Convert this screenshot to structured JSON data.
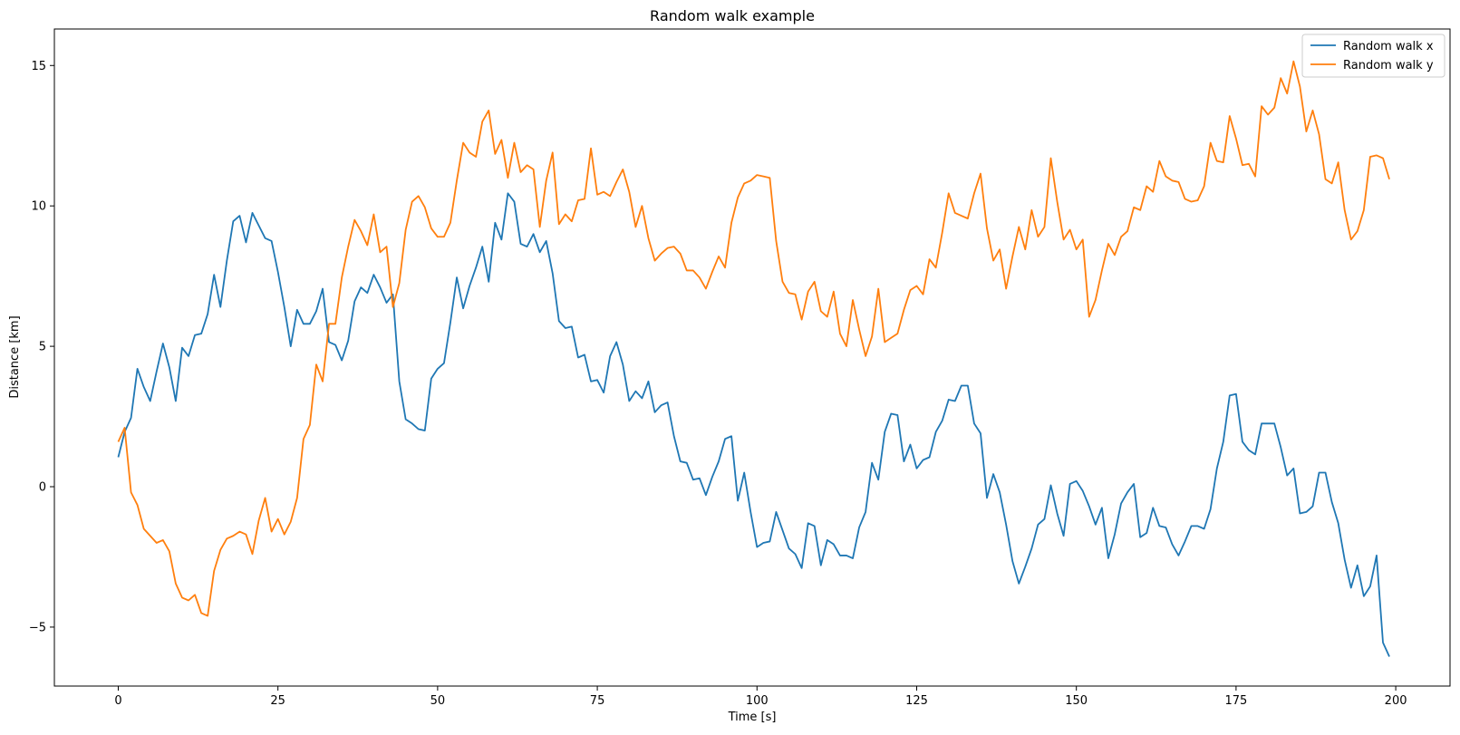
{
  "chart_data": {
    "type": "line",
    "title": "Random walk example",
    "xlabel": "Time [s]",
    "ylabel": "Distance [km]",
    "xlim": [
      -10,
      208.5
    ],
    "ylim": [
      -7.1,
      16.3
    ],
    "xticks": [
      0,
      25,
      50,
      75,
      100,
      125,
      150,
      175,
      200
    ],
    "xtick_labels": [
      "0",
      "25",
      "50",
      "75",
      "100",
      "125",
      "150",
      "175",
      "200"
    ],
    "yticks": [
      -5,
      0,
      5,
      10,
      15
    ],
    "ytick_labels": [
      "−5",
      "0",
      "5",
      "10",
      "15"
    ],
    "grid": false,
    "legend_position": "top-right",
    "x": [
      0,
      1,
      2,
      3,
      4,
      5,
      6,
      7,
      8,
      9,
      10,
      11,
      12,
      13,
      14,
      15,
      16,
      17,
      18,
      19,
      20,
      21,
      22,
      23,
      24,
      25,
      26,
      27,
      28,
      29,
      30,
      31,
      32,
      33,
      34,
      35,
      36,
      37,
      38,
      39,
      40,
      41,
      42,
      43,
      44,
      45,
      46,
      47,
      48,
      49,
      50,
      51,
      52,
      53,
      54,
      55,
      56,
      57,
      58,
      59,
      60,
      61,
      62,
      63,
      64,
      65,
      66,
      67,
      68,
      69,
      70,
      71,
      72,
      73,
      74,
      75,
      76,
      77,
      78,
      79,
      80,
      81,
      82,
      83,
      84,
      85,
      86,
      87,
      88,
      89,
      90,
      91,
      92,
      93,
      94,
      95,
      96,
      97,
      98,
      99,
      100,
      101,
      102,
      103,
      104,
      105,
      106,
      107,
      108,
      109,
      110,
      111,
      112,
      113,
      114,
      115,
      116,
      117,
      118,
      119,
      120,
      121,
      122,
      123,
      124,
      125,
      126,
      127,
      128,
      129,
      130,
      131,
      132,
      133,
      134,
      135,
      136,
      137,
      138,
      139,
      140,
      141,
      142,
      143,
      144,
      145,
      146,
      147,
      148,
      149,
      150,
      151,
      152,
      153,
      154,
      155,
      156,
      157,
      158,
      159,
      160,
      161,
      162,
      163,
      164,
      165,
      166,
      167,
      168,
      169,
      170,
      171,
      172,
      173,
      174,
      175,
      176,
      177,
      178,
      179,
      180,
      181,
      182,
      183,
      184,
      185,
      186,
      187,
      188,
      189,
      190,
      191,
      192,
      193,
      194,
      195,
      196,
      197,
      198,
      199
    ],
    "series": [
      {
        "name": "Random walk x",
        "color": "#1f77b4",
        "values": [
          1.05,
          1.95,
          2.45,
          4.2,
          3.55,
          3.05,
          4.1,
          5.1,
          4.25,
          3.05,
          4.95,
          4.65,
          5.4,
          5.45,
          6.15,
          7.55,
          6.4,
          8.05,
          9.45,
          9.65,
          8.7,
          9.75,
          9.3,
          8.85,
          8.75,
          7.65,
          6.4,
          5.0,
          6.3,
          5.8,
          5.8,
          6.25,
          7.05,
          5.15,
          5.05,
          4.5,
          5.2,
          6.6,
          7.1,
          6.9,
          7.55,
          7.1,
          6.55,
          6.85,
          3.75,
          2.4,
          2.25,
          2.05,
          2.0,
          3.85,
          4.2,
          4.4,
          5.85,
          7.45,
          6.35,
          7.15,
          7.8,
          8.55,
          7.3,
          9.4,
          8.8,
          10.45,
          10.15,
          8.65,
          8.55,
          9.0,
          8.35,
          8.75,
          7.6,
          5.9,
          5.65,
          5.7,
          4.6,
          4.7,
          3.75,
          3.8,
          3.35,
          4.65,
          5.15,
          4.35,
          3.05,
          3.4,
          3.15,
          3.75,
          2.65,
          2.9,
          3.0,
          1.8,
          0.9,
          0.85,
          0.25,
          0.3,
          -0.3,
          0.35,
          0.9,
          1.7,
          1.8,
          -0.5,
          0.5,
          -0.9,
          -2.15,
          -2.0,
          -1.95,
          -0.9,
          -1.55,
          -2.2,
          -2.4,
          -2.9,
          -1.3,
          -1.4,
          -2.8,
          -1.9,
          -2.05,
          -2.45,
          -2.45,
          -2.55,
          -1.45,
          -0.9,
          0.85,
          0.25,
          1.95,
          2.6,
          2.55,
          0.9,
          1.5,
          0.65,
          0.95,
          1.05,
          1.95,
          2.35,
          3.1,
          3.05,
          3.6,
          3.6,
          2.25,
          1.9,
          -0.4,
          0.45,
          -0.2,
          -1.35,
          -2.65,
          -3.45,
          -2.85,
          -2.2,
          -1.35,
          -1.15,
          0.05,
          -0.95,
          -1.75,
          0.1,
          0.2,
          -0.15,
          -0.7,
          -1.35,
          -0.75,
          -2.55,
          -1.7,
          -0.6,
          -0.2,
          0.1,
          -1.8,
          -1.65,
          -0.75,
          -1.4,
          -1.45,
          -2.05,
          -2.45,
          -1.95,
          -1.4,
          -1.4,
          -1.5,
          -0.8,
          0.65,
          1.6,
          3.25,
          3.3,
          1.6,
          1.3,
          1.15,
          2.25,
          2.25,
          2.25,
          1.4,
          0.4,
          0.65,
          -0.95,
          -0.9,
          -0.7,
          0.5,
          0.5,
          -0.55,
          -1.3,
          -2.6,
          -3.6,
          -2.8,
          -3.9,
          -3.55,
          -2.45,
          -5.55,
          -6.05
        ]
      },
      {
        "name": "Random walk y",
        "color": "#ff7f0e",
        "values": [
          1.6,
          2.1,
          -0.2,
          -0.65,
          -1.5,
          -1.75,
          -2.0,
          -1.9,
          -2.3,
          -3.45,
          -3.95,
          -4.05,
          -3.85,
          -4.5,
          -4.6,
          -3.0,
          -2.25,
          -1.85,
          -1.75,
          -1.6,
          -1.7,
          -2.4,
          -1.2,
          -0.4,
          -1.6,
          -1.15,
          -1.7,
          -1.25,
          -0.4,
          1.7,
          2.2,
          4.35,
          3.75,
          5.8,
          5.8,
          7.45,
          8.55,
          9.5,
          9.1,
          8.6,
          9.7,
          8.35,
          8.55,
          6.4,
          7.25,
          9.15,
          10.15,
          10.35,
          9.95,
          9.2,
          8.9,
          8.9,
          9.4,
          10.9,
          12.25,
          11.9,
          11.75,
          13.0,
          13.4,
          11.85,
          12.35,
          11.0,
          12.25,
          11.2,
          11.45,
          11.3,
          9.25,
          10.9,
          11.9,
          9.35,
          9.7,
          9.45,
          10.2,
          10.25,
          12.05,
          10.4,
          10.5,
          10.35,
          10.85,
          11.3,
          10.5,
          9.25,
          10.0,
          8.85,
          8.05,
          8.3,
          8.5,
          8.55,
          8.3,
          7.7,
          7.7,
          7.45,
          7.05,
          7.65,
          8.2,
          7.8,
          9.4,
          10.3,
          10.8,
          10.9,
          11.1,
          11.05,
          11.0,
          8.75,
          7.3,
          6.9,
          6.85,
          5.95,
          6.95,
          7.3,
          6.25,
          6.05,
          6.95,
          5.45,
          5.0,
          6.65,
          5.6,
          4.65,
          5.35,
          7.05,
          5.15,
          5.3,
          5.45,
          6.3,
          7.0,
          7.15,
          6.85,
          8.1,
          7.8,
          9.05,
          10.45,
          9.75,
          9.65,
          9.55,
          10.45,
          11.15,
          9.2,
          8.05,
          8.45,
          7.05,
          8.2,
          9.25,
          8.45,
          9.85,
          8.9,
          9.25,
          11.7,
          10.15,
          8.8,
          9.15,
          8.45,
          8.8,
          6.05,
          6.65,
          7.7,
          8.65,
          8.25,
          8.9,
          9.1,
          9.95,
          9.85,
          10.7,
          10.5,
          11.6,
          11.05,
          10.9,
          10.85,
          10.25,
          10.15,
          10.2,
          10.7,
          12.25,
          11.6,
          11.55,
          13.2,
          12.4,
          11.45,
          11.5,
          11.05,
          13.55,
          13.25,
          13.5,
          14.55,
          14.0,
          15.15,
          14.25,
          12.65,
          13.4,
          12.55,
          10.95,
          10.8,
          11.55,
          9.85,
          8.8,
          9.1,
          9.85,
          11.75,
          11.8,
          11.7,
          10.95
        ]
      }
    ]
  }
}
